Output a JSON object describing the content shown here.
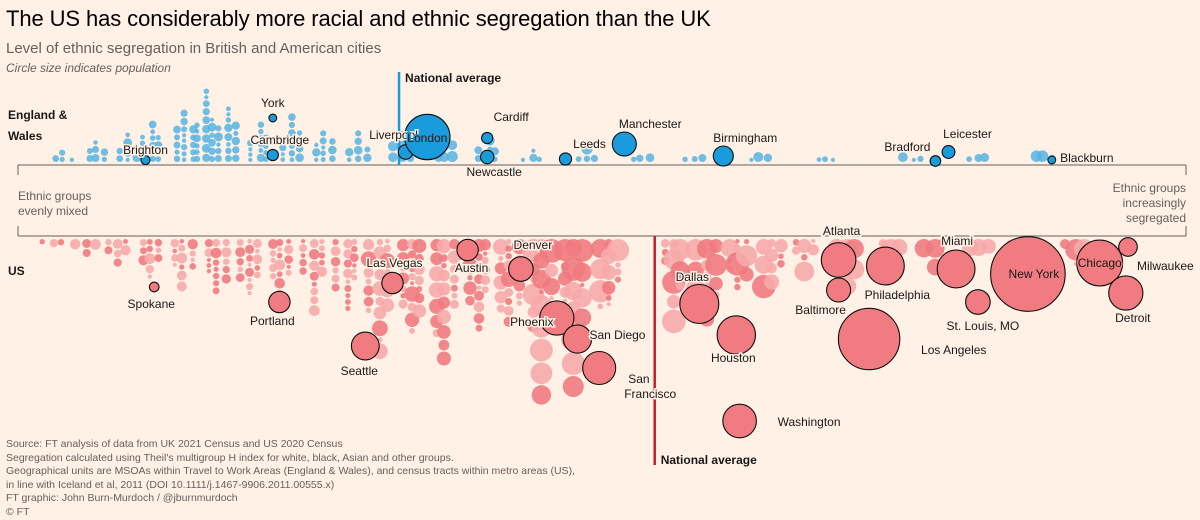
{
  "title": "The US has considerably more racial and ethnic segregation than the UK",
  "subtitle": "Level of ethnic segregation in British and American cities",
  "note": "Circle size indicates population",
  "colors": {
    "uk": "#56b4e3",
    "uk_accent": "#1a9bdb",
    "uk_label": "#2f8fc6",
    "us": "#f07b80",
    "us_light": "#f7aaab",
    "us_label": "#c0212f",
    "axis": "#66605c"
  },
  "axis_notes": {
    "left": [
      "Ethnic groups",
      "evenly mixed"
    ],
    "right": [
      "Ethnic groups",
      "increasingly",
      "segregated"
    ]
  },
  "footer": [
    "Source: FT analysis of data from UK 2021 Census and US 2020 Census",
    "Segregation calculated using Theil's multigroup H index for white, black, Asian and other groups.",
    "Geographical units are MSOAs within Travel to Work Areas (England & Wales), and census tracts within metro areas (US),",
    "in line with Iceland et al, 2011 (DOI 10.1111/j.1467-9906.2011.00555.x)",
    "FT graphic: John Burn-Murdoch / @jburnmurdoch",
    "© FT"
  ],
  "chart_data": {
    "type": "scatter",
    "x_measure": "Segregation (Theil's multigroup H), relative scale",
    "xlim": [
      0,
      1
    ],
    "size_measure": "Population (relative)",
    "panels": [
      {
        "name": "England & Wales",
        "label": [
          "England &",
          "Wales"
        ],
        "national_average": 0.33,
        "national_average_label": "National average",
        "cities": [
          {
            "name": "Brighton",
            "x": 0.097,
            "size": 1.6
          },
          {
            "name": "York",
            "x": 0.214,
            "size": 1.4
          },
          {
            "name": "Cambridge",
            "x": 0.214,
            "size": 2.0
          },
          {
            "name": "Liverpool",
            "x": 0.336,
            "size": 2.6
          },
          {
            "name": "London",
            "x": 0.356,
            "size": 8.6
          },
          {
            "name": "Cardiff",
            "x": 0.411,
            "size": 2.0
          },
          {
            "name": "Newcastle",
            "x": 0.411,
            "size": 2.4
          },
          {
            "name": "Leeds",
            "x": 0.483,
            "size": 2.2
          },
          {
            "name": "Manchester",
            "x": 0.537,
            "size": 4.3
          },
          {
            "name": "Birmingham",
            "x": 0.628,
            "size": 3.6
          },
          {
            "name": "Bradford",
            "x": 0.823,
            "size": 1.9
          },
          {
            "name": "Leicester",
            "x": 0.835,
            "size": 2.3
          },
          {
            "name": "Blackburn",
            "x": 0.93,
            "size": 1.4
          }
        ]
      },
      {
        "name": "US",
        "label": [
          "US"
        ],
        "national_average": 0.565,
        "national_average_label": "National average",
        "cities": [
          {
            "name": "Spokane",
            "x": 0.105,
            "size": 1.8
          },
          {
            "name": "Portland",
            "x": 0.22,
            "size": 4.0
          },
          {
            "name": "Seattle",
            "x": 0.299,
            "size": 5.2
          },
          {
            "name": "Las Vegas",
            "x": 0.324,
            "size": 4.0
          },
          {
            "name": "Austin",
            "x": 0.393,
            "size": 4.0
          },
          {
            "name": "Denver",
            "x": 0.442,
            "size": 4.6
          },
          {
            "name": "Phoenix",
            "x": 0.475,
            "size": 6.4
          },
          {
            "name": "San Diego",
            "x": 0.494,
            "size": 5.3
          },
          {
            "name": "San Francisco",
            "x": 0.514,
            "size": 6.2
          },
          {
            "name": "Dallas",
            "x": 0.606,
            "size": 7.3
          },
          {
            "name": "Houston",
            "x": 0.64,
            "size": 7.2
          },
          {
            "name": "Washington",
            "x": 0.643,
            "size": 6.3
          },
          {
            "name": "Atlanta",
            "x": 0.734,
            "size": 6.5
          },
          {
            "name": "Baltimore",
            "x": 0.734,
            "size": 4.5
          },
          {
            "name": "Philadelphia",
            "x": 0.777,
            "size": 7.1
          },
          {
            "name": "Los Angeles",
            "x": 0.762,
            "size": 11.5
          },
          {
            "name": "Miami",
            "x": 0.842,
            "size": 7.1
          },
          {
            "name": "St. Louis, MO",
            "x": 0.862,
            "size": 4.6
          },
          {
            "name": "New York",
            "x": 0.908,
            "size": 14.0
          },
          {
            "name": "Chicago",
            "x": 0.974,
            "size": 8.6
          },
          {
            "name": "Milwaukee",
            "x": 1.0,
            "size": 3.5
          },
          {
            "name": "Detroit",
            "x": 0.998,
            "size": 6.4
          }
        ]
      }
    ]
  }
}
